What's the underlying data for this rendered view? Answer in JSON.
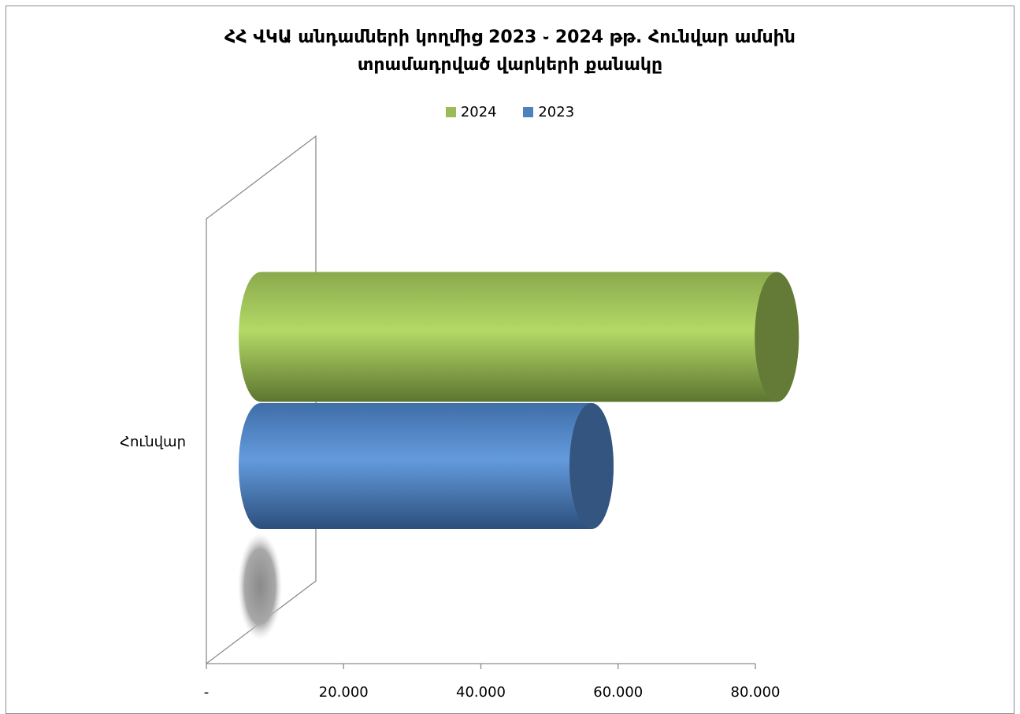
{
  "chart_data": {
    "type": "bar",
    "orientation": "horizontal",
    "style": "3d-cylinder",
    "title": [
      "ՀՀ ՎԿԱ անդամների կողմից 2023 ֊ 2024 թթ. Հունվար ամսին",
      "տրամադրված վարկերի քանակը"
    ],
    "categories": [
      "Հունվար"
    ],
    "series": [
      {
        "name": "2024",
        "values": [
          70500
        ],
        "color": "#9bbb59"
      },
      {
        "name": "2023",
        "values": [
          43500
        ],
        "color": "#4f81bd"
      }
    ],
    "xlim": [
      0,
      80000
    ],
    "xticks": [
      0,
      20000,
      40000,
      60000,
      80000
    ],
    "xtick_labels": [
      "-",
      "20.000",
      "40.000",
      "60.000",
      "80.000"
    ],
    "legend_position": "top",
    "grid": false
  }
}
